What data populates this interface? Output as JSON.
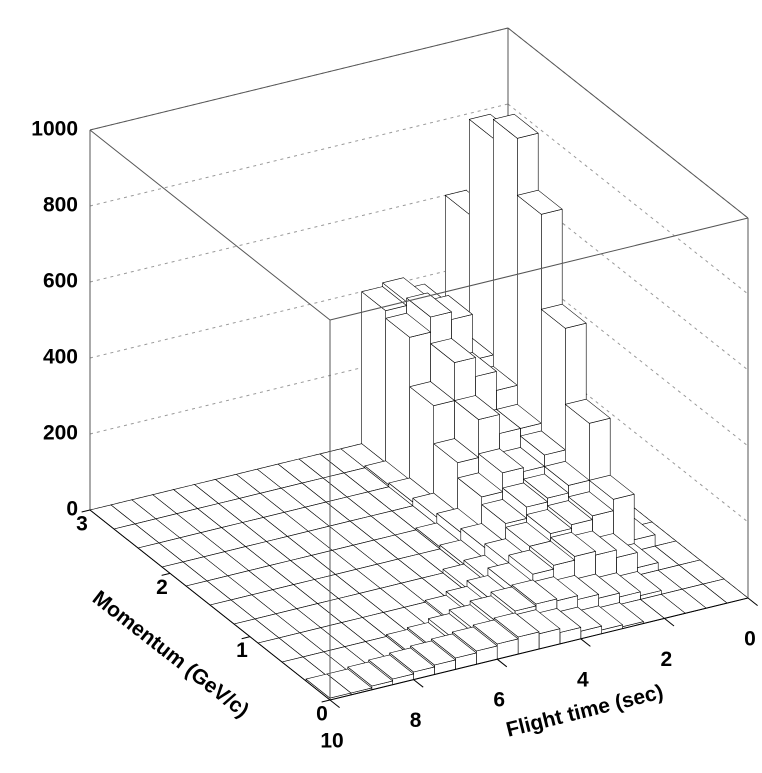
{
  "chart_data": {
    "type": "lego3d",
    "xlabel": "Flight time (sec)",
    "ylabel": "Momentum (GeV/c)",
    "xlim": [
      0,
      10
    ],
    "ylim": [
      0,
      3
    ],
    "zlim": [
      0,
      1000
    ],
    "xticks": [
      0,
      2,
      4,
      6,
      8,
      10
    ],
    "yticks": [
      0,
      1,
      2,
      3
    ],
    "zticks": [
      0,
      200,
      400,
      600,
      800,
      1000
    ],
    "grid": true,
    "color": "#ffffff",
    "values": [
      [
        0,
        0,
        0,
        0,
        0,
        5,
        10,
        20,
        30,
        40,
        45,
        40,
        35,
        30,
        25,
        20,
        15,
        10,
        5,
        5
      ],
      [
        0,
        0,
        0,
        10,
        20,
        30,
        40,
        50,
        55,
        50,
        40,
        30,
        20,
        10,
        5,
        0,
        0,
        0,
        0,
        0
      ],
      [
        0,
        0,
        20,
        60,
        80,
        90,
        80,
        70,
        50,
        30,
        15,
        5,
        0,
        0,
        0,
        0,
        0,
        0,
        0,
        0
      ],
      [
        0,
        30,
        150,
        120,
        110,
        100,
        80,
        50,
        20,
        10,
        0,
        0,
        0,
        0,
        0,
        0,
        0,
        0,
        0,
        0
      ],
      [
        0,
        80,
        300,
        150,
        130,
        120,
        90,
        40,
        10,
        0,
        0,
        0,
        0,
        0,
        0,
        0,
        0,
        0,
        0,
        0
      ],
      [
        0,
        150,
        500,
        180,
        150,
        160,
        110,
        30,
        5,
        0,
        0,
        0,
        0,
        0,
        0,
        0,
        0,
        0,
        0,
        0
      ],
      [
        0,
        250,
        750,
        200,
        200,
        250,
        150,
        20,
        0,
        0,
        0,
        0,
        0,
        0,
        0,
        0,
        0,
        0,
        0,
        0
      ],
      [
        0,
        350,
        900,
        250,
        300,
        350,
        250,
        10,
        0,
        0,
        0,
        0,
        0,
        0,
        0,
        0,
        0,
        0,
        0,
        0
      ],
      [
        0,
        300,
        850,
        280,
        400,
        420,
        380,
        5,
        0,
        0,
        0,
        0,
        0,
        0,
        0,
        0,
        0,
        0,
        0,
        0
      ],
      [
        0,
        200,
        600,
        250,
        380,
        410,
        400,
        0,
        0,
        0,
        0,
        0,
        0,
        0,
        0,
        0,
        0,
        0,
        0,
        0
      ]
    ]
  }
}
